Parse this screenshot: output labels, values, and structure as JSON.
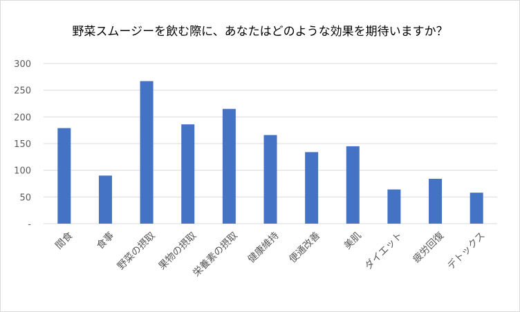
{
  "chart_data": {
    "type": "bar",
    "title": "野菜スムージーを飲む際に、あなたはどのような効果を期待いますか？",
    "categories": [
      "間食",
      "食事",
      "野菜の摂取",
      "果物の摂取",
      "栄養素の摂取",
      "健康維持",
      "便通改善",
      "美肌",
      "ダイエット",
      "疲労回復",
      "デトックス"
    ],
    "values": [
      179,
      90,
      267,
      186,
      215,
      166,
      134,
      145,
      64,
      84,
      58
    ],
    "ylim": [
      0,
      300
    ],
    "yticks": [
      0,
      50,
      100,
      150,
      200,
      250,
      300
    ],
    "ytick_labels": [
      "-",
      "50",
      "100",
      "150",
      "200",
      "250",
      "300"
    ],
    "xlabel": "",
    "ylabel": "",
    "grid": true,
    "legend": "none",
    "bar_color": "#4472c4",
    "grid_color": "#d9d9d9"
  }
}
